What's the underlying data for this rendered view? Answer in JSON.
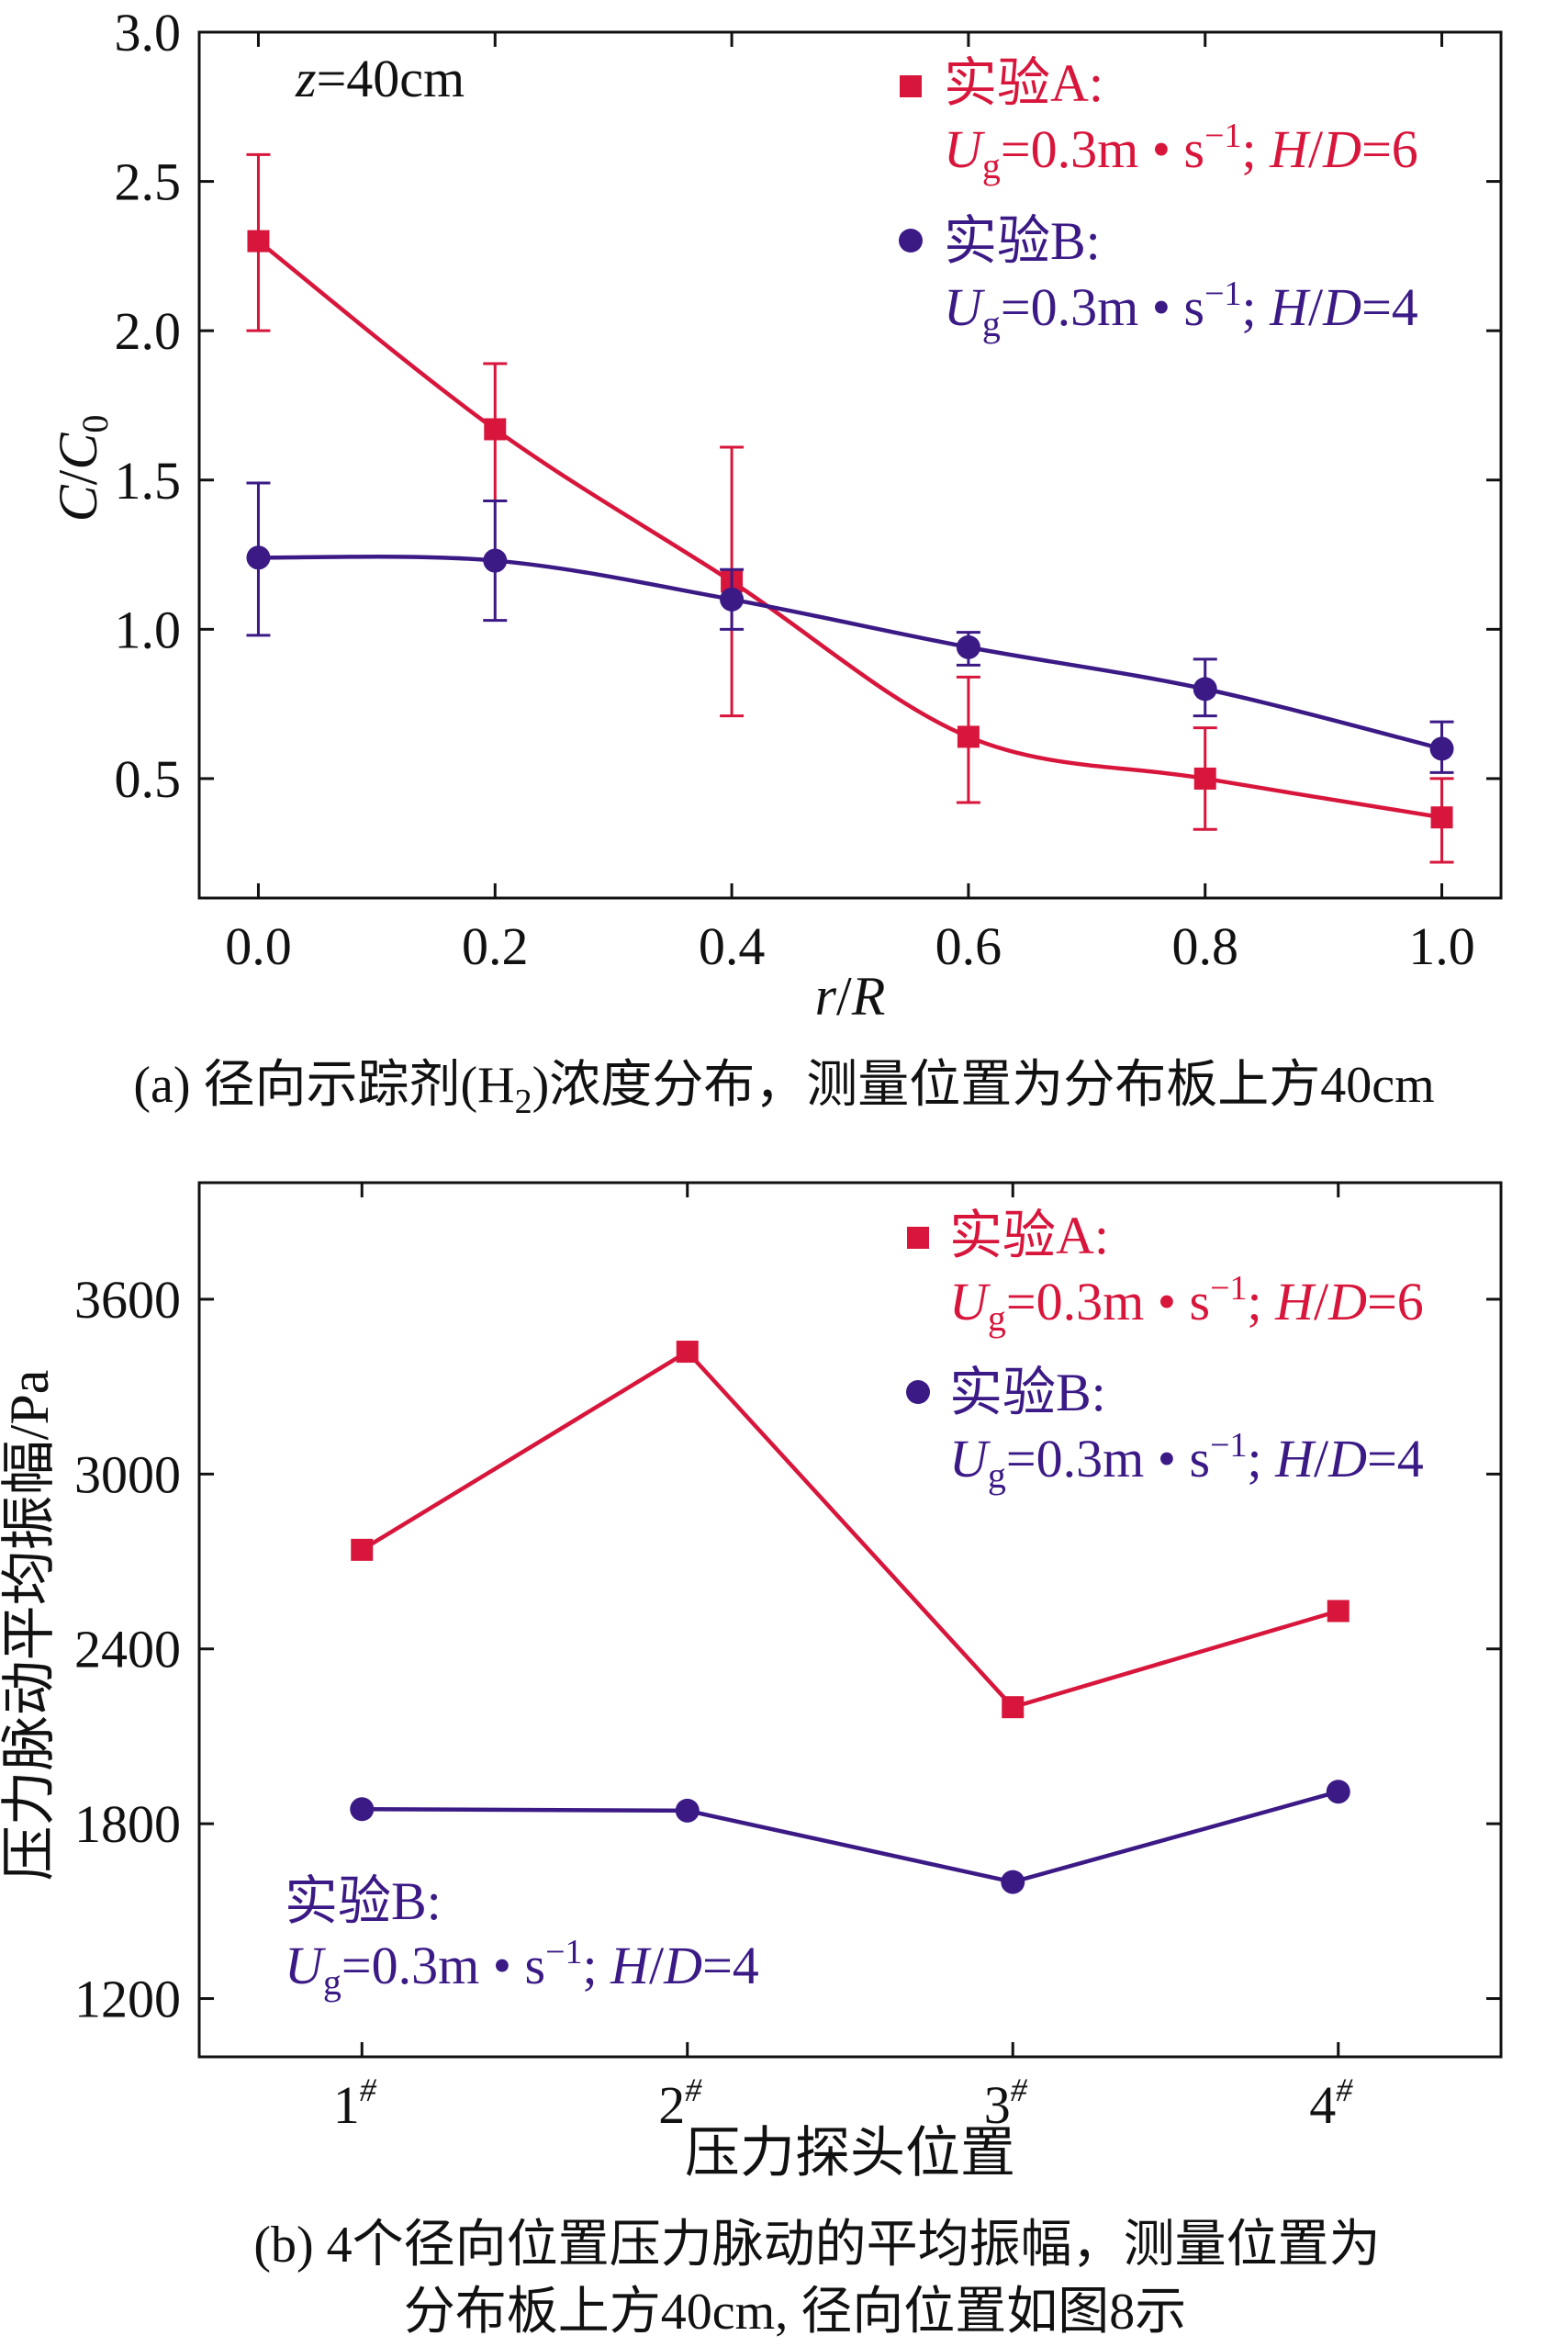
{
  "colors": {
    "series_a": "#d8163c",
    "series_b": "#3b1a86",
    "axis": "#111111"
  },
  "chart_data": [
    {
      "type": "line",
      "title": "",
      "inner_label": {
        "var": "z",
        "rest": "=40cm"
      },
      "xlabel": {
        "part1": "r",
        "part2": "/",
        "part3": "R"
      },
      "ylabel": {
        "part1": "C",
        "part2": "/",
        "part3": "C",
        "sub": "0"
      },
      "xlim": [
        -0.05,
        1.05
      ],
      "ylim": [
        0.1,
        3.0
      ],
      "xticks": [
        0.0,
        0.2,
        0.4,
        0.6,
        0.8,
        1.0
      ],
      "xtick_labels": [
        "0.0",
        "0.2",
        "0.4",
        "0.6",
        "0.8",
        "1.0"
      ],
      "yticks": [
        0.5,
        1.0,
        1.5,
        2.0,
        2.5,
        3.0
      ],
      "ytick_labels": [
        "0.5",
        "1.0",
        "1.5",
        "2.0",
        "2.5",
        "3.0"
      ],
      "x": [
        0.0,
        0.2,
        0.4,
        0.6,
        0.8,
        1.0
      ],
      "series": [
        {
          "name": "实验A",
          "marker": "square",
          "color": "#d8163c",
          "values": [
            2.3,
            1.67,
            1.16,
            0.64,
            0.5,
            0.37
          ],
          "err_low": [
            2.0,
            1.43,
            0.71,
            0.42,
            0.33,
            0.22
          ],
          "err_high": [
            2.59,
            1.89,
            1.61,
            0.84,
            0.67,
            0.5
          ],
          "legend": {
            "title": "实验A:",
            "u": "U",
            "sub": "g",
            "mid": "=0.3m • s",
            "sup": "−1",
            "semi": "; ",
            "h": "H",
            "slash": "/",
            "d": "D",
            "end": "=6"
          }
        },
        {
          "name": "实验B",
          "marker": "circle",
          "color": "#3b1a86",
          "values": [
            1.24,
            1.23,
            1.1,
            0.94,
            0.8,
            0.6
          ],
          "err_low": [
            0.98,
            1.03,
            1.0,
            0.88,
            0.71,
            0.52
          ],
          "err_high": [
            1.49,
            1.43,
            1.2,
            0.99,
            0.9,
            0.69
          ],
          "legend": {
            "title": "实验B:",
            "u": "U",
            "sub": "g",
            "mid": "=0.3m • s",
            "sup": "−1",
            "semi": "; ",
            "h": "H",
            "slash": "/",
            "d": "D",
            "end": "=4"
          }
        }
      ],
      "caption": {
        "pre": "(a) 径向示踪剂(H",
        "sub": "2",
        "post": ")浓度分布，测量位置为分布板上方40cm"
      }
    },
    {
      "type": "line",
      "title": "",
      "xlabel": "压力探头位置",
      "ylabel": "压力脉动平均振幅/Pa",
      "xlim": [
        0.5,
        4.5
      ],
      "ylim": [
        1000,
        4000
      ],
      "categories": [
        "1",
        "2",
        "3",
        "4"
      ],
      "category_sup": "#",
      "yticks": [
        1200,
        1800,
        2400,
        3000,
        3600
      ],
      "ytick_labels": [
        "1200",
        "1800",
        "2400",
        "3000",
        "3600"
      ],
      "series": [
        {
          "name": "实验A",
          "marker": "square",
          "color": "#d8163c",
          "values": [
            2740,
            3420,
            2200,
            2530
          ],
          "legend": {
            "title": "实验A:",
            "u": "U",
            "sub": "g",
            "mid": "=0.3m • s",
            "sup": "−1",
            "semi": "; ",
            "h": "H",
            "slash": "/",
            "d": "D",
            "end": "=6"
          }
        },
        {
          "name": "实验B",
          "marker": "circle",
          "color": "#3b1a86",
          "values": [
            1850,
            1845,
            1600,
            1910
          ],
          "legend": {
            "title": "实验B:",
            "u": "U",
            "sub": "g",
            "mid": "=0.3m • s",
            "sup": "−1",
            "semi": "; ",
            "h": "H",
            "slash": "/",
            "d": "D",
            "end": "=4"
          }
        }
      ],
      "annotation": {
        "title": "实验B:",
        "u": "U",
        "sub": "g",
        "mid": "=0.3m • s",
        "sup": "−1",
        "semi": "; ",
        "h": "H",
        "slash": "/",
        "d": "D",
        "end": "=4"
      },
      "caption": {
        "line1": "(b) 4个径向位置压力脉动的平均振幅，测量位置为",
        "line2": "分布板上方40cm, 径向位置如图8示"
      }
    }
  ]
}
